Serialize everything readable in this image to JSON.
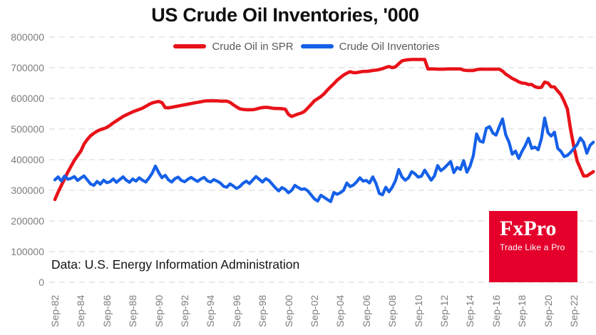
{
  "source_note": "Data: U.S. Energy Information Administration",
  "logo": {
    "name": "FxPro",
    "tagline": "Trade Like a Pro",
    "bg_color": "#e4002b"
  },
  "colors": {
    "grid": "#e3e3e3",
    "axis_text": "#7d7d7d",
    "legend_text": "#595959",
    "title_text": "#0f0f0f",
    "spr_red": "#e81219",
    "inventories_blue": "#1560e8"
  },
  "chart_data": {
    "type": "line",
    "title": "US Crude Oil Inventories, '000",
    "xlabel": "",
    "ylabel": "",
    "ylim": [
      0,
      800000
    ],
    "grid": "horizontal-dashed",
    "legend_position": "top-center",
    "y_ticks": [
      0,
      100000,
      200000,
      300000,
      400000,
      500000,
      600000,
      700000,
      800000
    ],
    "x_tick_labels": [
      "Sep-82",
      "Sep-84",
      "Sep-86",
      "Sep-88",
      "Sep-90",
      "Sep-92",
      "Sep-94",
      "Sep-96",
      "Sep-98",
      "Sep-00",
      "Sep-02",
      "Sep-04",
      "Sep-06",
      "Sep-08",
      "Sep-10",
      "Sep-12",
      "Sep-14",
      "Sep-16",
      "Sep-18",
      "Sep-20",
      "Sep-22"
    ],
    "x_start_year": 1982.75,
    "x_step_years": 0.25,
    "units": "thousand barrels",
    "series": [
      {
        "name": "Crude Oil in SPR",
        "color": "#e81219",
        "values": [
          270000,
          294000,
          316000,
          338000,
          360000,
          379000,
          398000,
          413000,
          428000,
          451000,
          466000,
          478000,
          486000,
          493000,
          498000,
          501000,
          505000,
          512000,
          520000,
          527000,
          534000,
          541000,
          546000,
          551000,
          556000,
          560000,
          564000,
          568000,
          574000,
          580000,
          585000,
          588000,
          590000,
          586000,
          570000,
          569000,
          571000,
          573000,
          575000,
          577000,
          579000,
          581000,
          583000,
          585000,
          587000,
          589000,
          591000,
          592000,
          592000,
          592000,
          592000,
          591000,
          591000,
          591000,
          587000,
          579000,
          572000,
          566000,
          564000,
          563000,
          563000,
          563000,
          565000,
          568000,
          570000,
          571000,
          570000,
          568000,
          567000,
          567000,
          566000,
          565000,
          548000,
          541000,
          545000,
          549000,
          552000,
          558000,
          569000,
          580000,
          592000,
          599000,
          606000,
          615000,
          627000,
          638000,
          648000,
          659000,
          668000,
          676000,
          682000,
          687000,
          684000,
          684000,
          686000,
          688000,
          688000,
          689000,
          691000,
          692000,
          694000,
          697000,
          701000,
          704000,
          700000,
          703000,
          713000,
          722000,
          725000,
          726000,
          727000,
          727000,
          727000,
          727000,
          727000,
          696000,
          696000,
          696000,
          695000,
          695000,
          695000,
          696000,
          696000,
          696000,
          696000,
          696000,
          692000,
          691000,
          691000,
          691000,
          694000,
          695000,
          695000,
          695000,
          695000,
          695000,
          695000,
          695000,
          689000,
          679000,
          672000,
          665000,
          660000,
          654000,
          650000,
          649000,
          645000,
          645000,
          638000,
          635000,
          636000,
          653000,
          650000,
          638000,
          637000,
          624000,
          612000,
          590000,
          565000,
          498000,
          442000,
          396000,
          371000,
          347000,
          347000,
          354000,
          361000
        ]
      },
      {
        "name": "Crude Oil Inventories",
        "color": "#1560e8",
        "values": [
          334000,
          344000,
          330000,
          347000,
          336000,
          339000,
          345000,
          332000,
          340000,
          347000,
          334000,
          321000,
          316000,
          329000,
          320000,
          333000,
          325000,
          328000,
          337000,
          326000,
          335000,
          344000,
          333000,
          326000,
          337000,
          330000,
          341000,
          333000,
          327000,
          340000,
          356000,
          379000,
          358000,
          341000,
          349000,
          334000,
          327000,
          338000,
          343000,
          332000,
          328000,
          336000,
          342000,
          335000,
          329000,
          337000,
          342000,
          331000,
          327000,
          335000,
          330000,
          324000,
          313000,
          310000,
          321000,
          314000,
          306000,
          312000,
          323000,
          330000,
          322000,
          334000,
          345000,
          336000,
          327000,
          338000,
          332000,
          320000,
          308000,
          298000,
          309000,
          303000,
          292000,
          300000,
          316000,
          309000,
          303000,
          305000,
          298000,
          285000,
          272000,
          265000,
          284000,
          277000,
          270000,
          263000,
          293000,
          287000,
          292000,
          300000,
          324000,
          312000,
          317000,
          327000,
          341000,
          330000,
          332000,
          324000,
          344000,
          322000,
          290000,
          285000,
          310000,
          295000,
          310000,
          332000,
          368000,
          344000,
          333000,
          341000,
          361000,
          354000,
          343000,
          346000,
          366000,
          349000,
          333000,
          347000,
          381000,
          364000,
          372000,
          383000,
          394000,
          358000,
          375000,
          368000,
          397000,
          359000,
          379000,
          413000,
          484000,
          461000,
          457000,
          502000,
          508000,
          487000,
          480000,
          508000,
          533000,
          481000,
          457000,
          418000,
          428000,
          404000,
          427000,
          446000,
          470000,
          437000,
          441000,
          432000,
          469000,
          536000,
          488000,
          477000,
          490000,
          437000,
          427000,
          410000,
          414000,
          424000,
          437000,
          449000,
          471000,
          457000,
          421000,
          447000,
          457000
        ]
      }
    ]
  }
}
